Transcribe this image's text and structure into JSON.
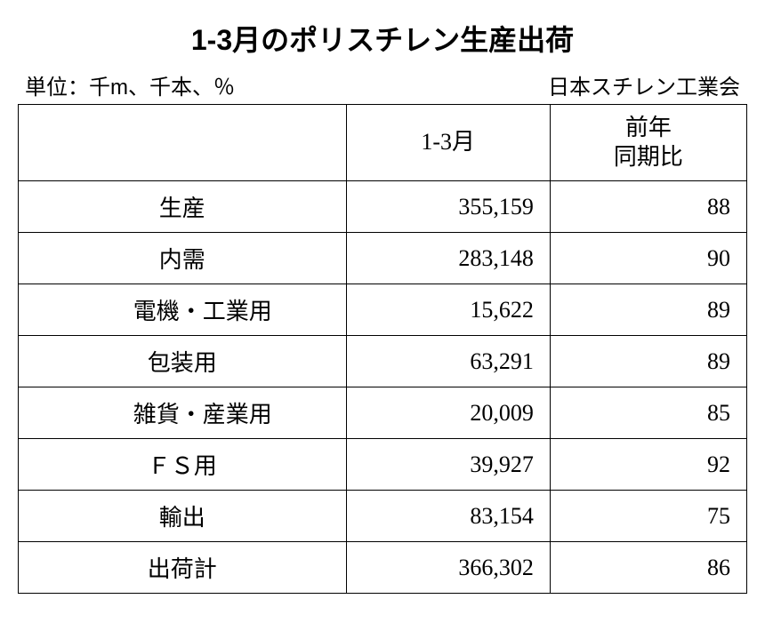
{
  "title": "1-3月のポリスチレン生産出荷",
  "unit_label": "単位：千m、千本、％",
  "source_label": "日本スチレン工業会",
  "table": {
    "type": "table",
    "columns": [
      "",
      "1-3月",
      "前年\n同期比"
    ],
    "column_widths_pct": [
      45,
      28,
      27
    ],
    "rows": [
      {
        "label": "生産",
        "indent": false,
        "value": "355,159",
        "yoy": "88"
      },
      {
        "label": "内需",
        "indent": false,
        "value": "283,148",
        "yoy": "90"
      },
      {
        "label": "電機・工業用",
        "indent": true,
        "value": "15,622",
        "yoy": "89"
      },
      {
        "label": "包装用",
        "indent": false,
        "value": "63,291",
        "yoy": "89"
      },
      {
        "label": "雑貨・産業用",
        "indent": true,
        "value": "20,009",
        "yoy": "85"
      },
      {
        "label": "ＦＳ用",
        "indent": false,
        "value": "39,927",
        "yoy": "92"
      },
      {
        "label": "輸出",
        "indent": false,
        "value": "83,154",
        "yoy": "75"
      },
      {
        "label": "出荷計",
        "indent": false,
        "value": "366,302",
        "yoy": "86"
      }
    ],
    "border_color": "#000000",
    "background_color": "#ffffff",
    "font_size_title": 32,
    "font_size_meta": 24,
    "font_size_body": 26
  }
}
